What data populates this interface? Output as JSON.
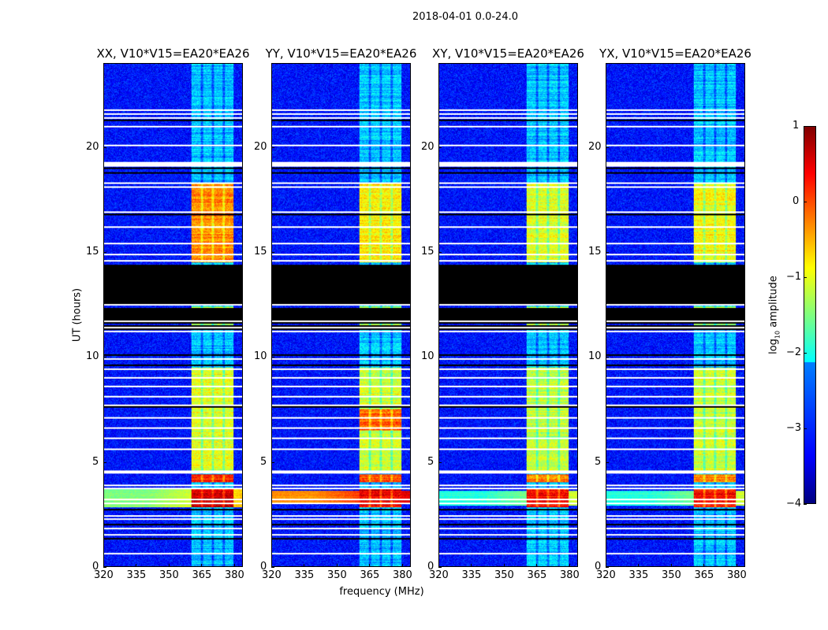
{
  "chart_data": {
    "type": "heatmap",
    "title": "2018-04-01 0.0-24.0",
    "xlabel": "frequency (MHz)",
    "ylabel": "UT (hours)",
    "xlim": [
      320,
      384
    ],
    "ylim": [
      0,
      24
    ],
    "xticks": [
      "320",
      "335",
      "350",
      "365",
      "380"
    ],
    "xtick_values": [
      320,
      335,
      350,
      365,
      380
    ],
    "yticks": [
      "0",
      "5",
      "10",
      "15",
      "20"
    ],
    "ytick_values": [
      0,
      5,
      10,
      15,
      20
    ],
    "colorbar": {
      "label_prefix": "log",
      "label_sub": "10",
      "label_suffix": " amplitude",
      "range": [
        -4,
        1
      ],
      "ticks": [
        "1",
        "0",
        "−1",
        "−2",
        "−3",
        "−4"
      ],
      "tick_values": [
        1,
        0,
        -1,
        -2,
        -3,
        -4
      ],
      "colormap": "jet"
    },
    "background_level": -3.3,
    "rfi_band_mhz": [
      360.5,
      380
    ],
    "rfi_subband_gaps_mhz": [
      365.5,
      370.5,
      375.5
    ],
    "flagged_black_hours": [
      [
        11.3,
        14.4
      ]
    ],
    "flagged_white_hours": [
      0.6,
      1.5,
      1.8,
      2.25,
      2.4,
      3.0,
      3.2,
      3.7,
      3.85,
      4.45,
      4.55,
      5.6,
      6.1,
      6.6,
      7.1,
      7.7,
      8.1,
      8.6,
      9.0,
      9.4,
      9.9,
      11.2,
      11.4,
      11.7,
      12.5,
      14.6,
      14.9,
      15.4,
      16.2,
      16.9,
      18.1,
      18.3,
      19.2,
      20.1,
      21.0,
      21.4,
      21.6,
      21.8
    ],
    "flagged_black_lines_hours": [
      1.3,
      2.0,
      2.7,
      7.6,
      9.6,
      10.1,
      16.8,
      18.8,
      19.0,
      21.3
    ],
    "panels": [
      {
        "title": "XX, V10*V15=EA20*EA26",
        "band_activity": [
          [
            2.8,
            3.7,
            0.6
          ],
          [
            4.0,
            4.4,
            0.2
          ],
          [
            4.5,
            9.5,
            -1.0
          ],
          [
            14.5,
            18.3,
            -0.3
          ],
          [
            11.4,
            12.4,
            -1.3
          ]
        ],
        "broadband": [
          [
            2.8,
            3.7,
            -1.5
          ]
        ]
      },
      {
        "title": "YY, V10*V15=EA20*EA26",
        "band_activity": [
          [
            2.8,
            3.7,
            0.5
          ],
          [
            4.0,
            4.4,
            0.0
          ],
          [
            6.5,
            7.5,
            -0.1
          ],
          [
            4.5,
            9.5,
            -1.1
          ],
          [
            14.5,
            18.3,
            -0.8
          ],
          [
            11.4,
            12.4,
            -1.3
          ]
        ],
        "broadband": [
          [
            3.0,
            3.6,
            -0.3
          ]
        ]
      },
      {
        "title": "XY, V10*V15=EA20*EA26",
        "band_activity": [
          [
            2.8,
            3.7,
            0.3
          ],
          [
            4.0,
            4.4,
            -0.3
          ],
          [
            4.5,
            9.5,
            -1.2
          ],
          [
            14.5,
            18.3,
            -1.0
          ],
          [
            11.4,
            12.4,
            -1.4
          ]
        ],
        "broadband": [
          [
            2.9,
            3.6,
            -2.0
          ]
        ]
      },
      {
        "title": "YX, V10*V15=EA20*EA26",
        "band_activity": [
          [
            2.8,
            3.7,
            0.3
          ],
          [
            4.0,
            4.4,
            -0.3
          ],
          [
            4.5,
            9.5,
            -1.1
          ],
          [
            14.5,
            18.3,
            -0.9
          ],
          [
            11.4,
            12.4,
            -1.4
          ]
        ],
        "broadband": [
          [
            2.9,
            3.6,
            -2.0
          ]
        ]
      }
    ]
  }
}
